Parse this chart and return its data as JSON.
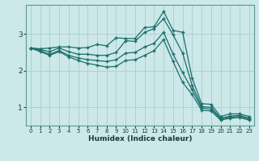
{
  "xlabel": "Humidex (Indice chaleur)",
  "bg_color": "#cce8e8",
  "grid_color": "#b0d0d0",
  "line_color": "#1a6e6a",
  "xlim": [
    -0.5,
    23.5
  ],
  "ylim": [
    0.5,
    3.8
  ],
  "yticks": [
    1,
    2,
    3
  ],
  "xticks": [
    0,
    1,
    2,
    3,
    4,
    5,
    6,
    7,
    8,
    9,
    10,
    11,
    12,
    13,
    14,
    15,
    16,
    17,
    18,
    19,
    20,
    21,
    22,
    23
  ],
  "lines": [
    [
      2.62,
      2.6,
      2.62,
      2.65,
      2.65,
      2.62,
      2.63,
      2.72,
      2.68,
      2.9,
      2.88,
      2.88,
      3.18,
      3.2,
      3.62,
      3.1,
      3.05,
      1.8,
      1.1,
      1.08,
      0.75,
      0.82,
      0.82,
      0.75
    ],
    [
      2.62,
      2.58,
      2.52,
      2.62,
      2.52,
      2.45,
      2.45,
      2.42,
      2.42,
      2.5,
      2.82,
      2.8,
      3.05,
      3.15,
      3.42,
      2.98,
      2.48,
      1.6,
      1.02,
      1.0,
      0.7,
      0.76,
      0.78,
      0.7
    ],
    [
      2.62,
      2.55,
      2.45,
      2.55,
      2.42,
      2.35,
      2.3,
      2.28,
      2.25,
      2.3,
      2.48,
      2.5,
      2.65,
      2.75,
      3.05,
      2.45,
      1.95,
      1.48,
      0.98,
      0.95,
      0.68,
      0.73,
      0.75,
      0.68
    ],
    [
      2.62,
      2.52,
      2.42,
      2.52,
      2.38,
      2.28,
      2.2,
      2.15,
      2.1,
      2.12,
      2.28,
      2.3,
      2.42,
      2.55,
      2.85,
      2.25,
      1.68,
      1.35,
      0.92,
      0.9,
      0.65,
      0.7,
      0.72,
      0.65
    ]
  ]
}
